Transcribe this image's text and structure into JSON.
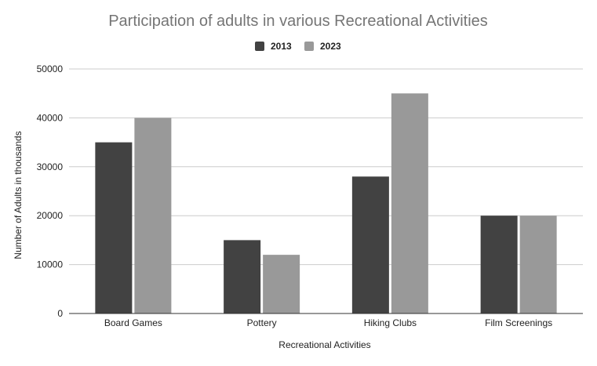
{
  "chart_data": {
    "type": "bar",
    "title": "Participation of adults in various Recreational Activities",
    "xlabel": "Recreational Activities",
    "ylabel": "Number of Adults in thousands",
    "categories": [
      "Board Games",
      "Pottery",
      "Hiking Clubs",
      "Film Screenings"
    ],
    "series": [
      {
        "name": "2013",
        "color": "#424242",
        "values": [
          35000,
          15000,
          28000,
          20000
        ]
      },
      {
        "name": "2023",
        "color": "#999999",
        "values": [
          40000,
          12000,
          45000,
          20000
        ]
      }
    ],
    "ylim": [
      0,
      50000
    ],
    "yticks": [
      "0",
      "10000",
      "20000",
      "30000",
      "40000",
      "50000"
    ],
    "grid": true,
    "legend_position": "top-center"
  }
}
